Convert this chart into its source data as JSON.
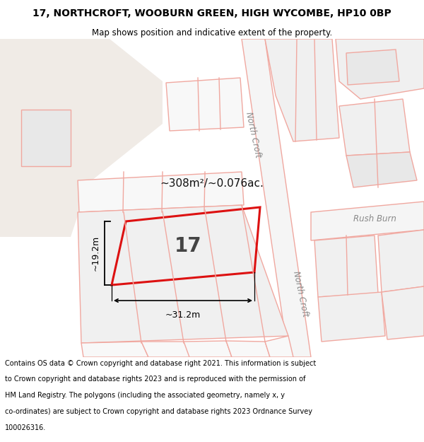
{
  "title_line1": "17, NORTHCROFT, WOOBURN GREEN, HIGH WYCOMBE, HP10 0BP",
  "title_line2": "Map shows position and indicative extent of the property.",
  "footer_lines": [
    "Contains OS data © Crown copyright and database right 2021. This information is subject",
    "to Crown copyright and database rights 2023 and is reproduced with the permission of",
    "HM Land Registry. The polygons (including the associated geometry, namely x, y",
    "co-ordinates) are subject to Crown copyright and database rights 2023 Ordnance Survey",
    "100026316."
  ],
  "bg_color": "#ffffff",
  "map_bg": "#ffffff",
  "block_color": "#f0ebe6",
  "block_color2": "#e8e8e8",
  "road_color": "#f0a8a0",
  "highlight_color": "#dd1111",
  "property_label": "17",
  "area_text": "~308m²/~0.076ac.",
  "dim_width_text": "~31.2m",
  "dim_height_text": "~19.2m",
  "street_label_nc": "North Croft",
  "street_label_rb": "Rush Burn"
}
